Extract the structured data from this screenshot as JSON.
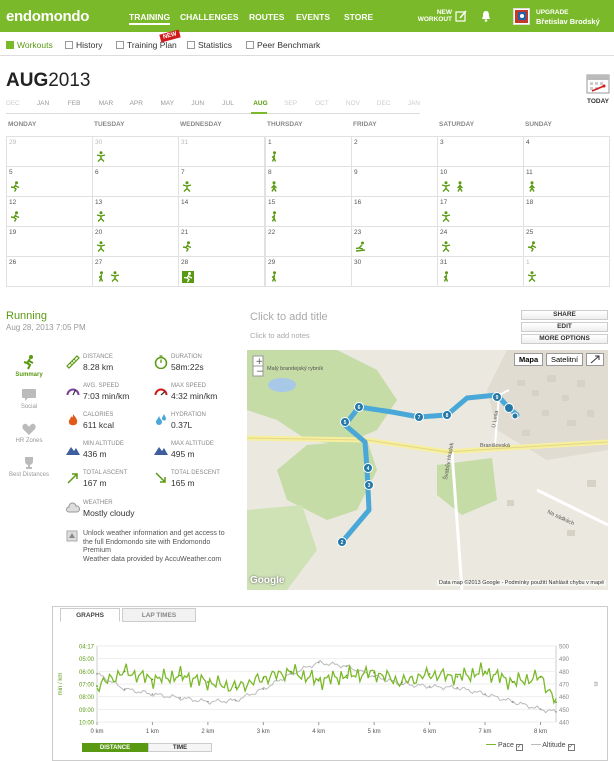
{
  "header": {
    "logo": "endomondo",
    "nav": [
      "TRAINING",
      "CHALLENGES",
      "ROUTES",
      "EVENTS",
      "STORE"
    ],
    "new_workout_line1": "NEW",
    "new_workout_line2": "WORKOUT",
    "upgrade": "UPGRADE",
    "user_name": "Břetislav Brodský"
  },
  "subnav": {
    "items": [
      "Workouts",
      "History",
      "Training Plan",
      "Statistics",
      "Peer Benchmark"
    ],
    "new_badge": "NEW"
  },
  "calendar": {
    "month": "AUG",
    "year": "2013",
    "today_label": "TODAY",
    "today_icon": "calendar-icon",
    "months": [
      "DEC",
      "JAN",
      "FEB",
      "MAR",
      "APR",
      "MAY",
      "JUN",
      "JUL",
      "AUG",
      "SEP",
      "OCT",
      "NOV",
      "DEC",
      "JAN"
    ],
    "weekdays": [
      "MONDAY",
      "TUESDAY",
      "WEDNESDAY",
      "THURSDAY",
      "FRIDAY",
      "SATURDAY",
      "SUNDAY"
    ],
    "weeks": [
      [
        {
          "d": "29",
          "o": true,
          "a": []
        },
        {
          "d": "30",
          "o": true,
          "a": [
            "x"
          ]
        },
        {
          "d": "31",
          "o": true,
          "a": []
        },
        {
          "d": "1",
          "a": [
            "w"
          ]
        },
        {
          "d": "2",
          "a": []
        },
        {
          "d": "3",
          "a": []
        },
        {
          "d": "4",
          "a": []
        }
      ],
      [
        {
          "d": "5",
          "a": [
            "r"
          ]
        },
        {
          "d": "6",
          "a": []
        },
        {
          "d": "7",
          "a": [
            "x"
          ]
        },
        {
          "d": "8",
          "a": [
            "h"
          ]
        },
        {
          "d": "9",
          "a": []
        },
        {
          "d": "10",
          "a": [
            "x",
            "h"
          ]
        },
        {
          "d": "11",
          "a": [
            "h"
          ]
        }
      ],
      [
        {
          "d": "12",
          "a": [
            "r"
          ]
        },
        {
          "d": "13",
          "a": [
            "x"
          ]
        },
        {
          "d": "14",
          "a": []
        },
        {
          "d": "15",
          "a": [
            "w"
          ]
        },
        {
          "d": "16",
          "a": []
        },
        {
          "d": "17",
          "a": [
            "x"
          ]
        },
        {
          "d": "18",
          "a": []
        }
      ],
      [
        {
          "d": "19",
          "a": []
        },
        {
          "d": "20",
          "a": [
            "x"
          ]
        },
        {
          "d": "21",
          "a": [
            "r"
          ]
        },
        {
          "d": "22",
          "a": []
        },
        {
          "d": "23",
          "a": [
            "s"
          ]
        },
        {
          "d": "24",
          "a": [
            "x"
          ]
        },
        {
          "d": "25",
          "a": [
            "r"
          ]
        }
      ],
      [
        {
          "d": "26",
          "a": []
        },
        {
          "d": "27",
          "a": [
            "w",
            "x"
          ]
        },
        {
          "d": "28",
          "a": [
            "sel"
          ]
        },
        {
          "d": "29",
          "a": [
            "w"
          ]
        },
        {
          "d": "30",
          "a": []
        },
        {
          "d": "31",
          "a": [
            "w"
          ]
        },
        {
          "d": "1",
          "o": true,
          "a": [
            "x"
          ]
        }
      ]
    ]
  },
  "workout": {
    "sport": "Running",
    "date": "Aug 28, 2013 7:05 PM",
    "add_title": "Click to add title",
    "add_notes": "Click to add notes",
    "actions": [
      "SHARE",
      "EDIT",
      "MORE OPTIONS"
    ],
    "tabs": [
      "Summary",
      "Social",
      "HR Zones",
      "Best Distances"
    ],
    "stats": [
      {
        "label": "DISTANCE",
        "value": "8.28 km",
        "icon": "ruler-icon"
      },
      {
        "label": "DURATION",
        "value": "58m:22s",
        "icon": "stopwatch-icon"
      },
      {
        "label": "AVG. SPEED",
        "value": "7:03 min/km",
        "icon": "speedometer-icon"
      },
      {
        "label": "MAX SPEED",
        "value": "4:32 min/km",
        "icon": "speedometer-max-icon"
      },
      {
        "label": "CALORIES",
        "value": "611 kcal",
        "icon": "flame-icon"
      },
      {
        "label": "HYDRATION",
        "value": "0.37L",
        "icon": "drops-icon"
      },
      {
        "label": "MIN ALTITUDE",
        "value": "436 m",
        "icon": "mountain-icon"
      },
      {
        "label": "MAX ALTITUDE",
        "value": "495 m",
        "icon": "mountain-icon"
      },
      {
        "label": "TOTAL ASCENT",
        "value": "167 m",
        "icon": "ascent-icon"
      },
      {
        "label": "TOTAL DESCENT",
        "value": "165 m",
        "icon": "descent-icon"
      },
      {
        "label": "WEATHER",
        "value": "Mostly cloudy",
        "icon": "cloud-icon"
      }
    ],
    "weather_note": [
      "Unlock weather information and get access to",
      "the full Endomondo site with Endomondo",
      "Premium",
      "Weather data provided by AccuWeather.com"
    ]
  },
  "map": {
    "buttons": [
      "Mapa",
      "Satelitní"
    ],
    "labels": [
      "Malý brandejský rybník",
      "Branišovská",
      "U Lesa",
      "Švabův Hrádek",
      "Na sádkách"
    ],
    "markers": [
      "2",
      "3",
      "4",
      "5",
      "6",
      "7",
      "8",
      "9"
    ],
    "footer": "Data map ©2013 Google - Podmínky použití   Nahlásit chybu v mapě",
    "google": "Google",
    "accent": "#4aa8d8"
  },
  "graph": {
    "tabs": [
      "GRAPHS",
      "LAP TIMES"
    ],
    "toggles": [
      "DISTANCE",
      "TIME"
    ],
    "legend_pace": "Pace",
    "legend_alt": "Altitude",
    "ylabel_left": "min / km",
    "ylabel_right": "m",
    "left_ticks": [
      "04:17",
      "05:00",
      "06:00",
      "07:00",
      "08:00",
      "09:00",
      "10:00"
    ],
    "right_ticks": [
      "500",
      "490",
      "480",
      "470",
      "460",
      "450",
      "440"
    ],
    "x_ticks": [
      "0 km",
      "1 km",
      "2 km",
      "3 km",
      "4 km",
      "5 km",
      "6 km",
      "7 km",
      "8 km"
    ]
  },
  "chart_data": {
    "type": "line",
    "xlabel": "",
    "x": [
      0,
      0.5,
      1,
      1.5,
      2,
      2.5,
      3,
      3.5,
      4,
      4.5,
      5,
      5.5,
      6,
      6.5,
      7,
      7.5,
      8,
      8.28
    ],
    "series": [
      {
        "name": "Pace",
        "values": [
          7.3,
          6.2,
          6.8,
          6.5,
          7.0,
          7.4,
          6.7,
          6.2,
          6.9,
          6.5,
          6.3,
          7.0,
          6.4,
          6.6,
          6.2,
          7.0,
          6.6,
          8.5
        ]
      },
      {
        "name": "Altitude",
        "values": [
          478,
          466,
          462,
          459,
          456,
          457,
          466,
          478,
          487,
          484,
          476,
          470,
          468,
          467,
          462,
          456,
          450,
          448
        ]
      }
    ]
  }
}
